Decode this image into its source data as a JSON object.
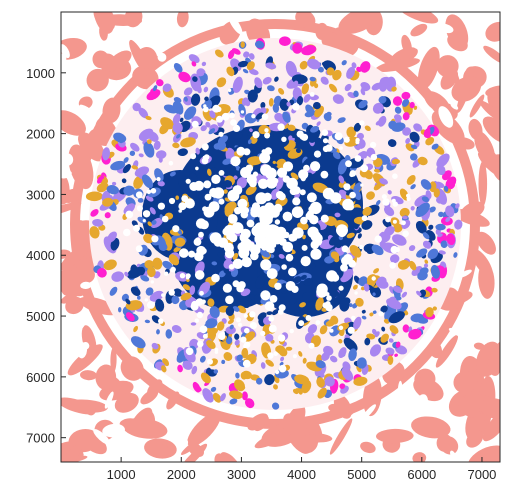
{
  "figure": {
    "x_ticks": [
      "1000",
      "2000",
      "3000",
      "4000",
      "5000",
      "6000",
      "7000"
    ],
    "y_ticks": [
      "1000",
      "2000",
      "3000",
      "4000",
      "5000",
      "6000",
      "7000"
    ],
    "x_range": [
      0,
      7300
    ],
    "y_range": [
      0,
      7400
    ],
    "y_direction": "reversed (0 at top)",
    "grid": false,
    "colors": {
      "stroma": "#f4978e",
      "core": "#0b3a8f",
      "nuclei": "#ffffff",
      "mid_blue": "#4f78d8",
      "light_violet": "#a886f0",
      "gold": "#e6a72e",
      "magenta": "#ff1fd0",
      "axis": "#262626",
      "background": "#ffffff"
    }
  }
}
